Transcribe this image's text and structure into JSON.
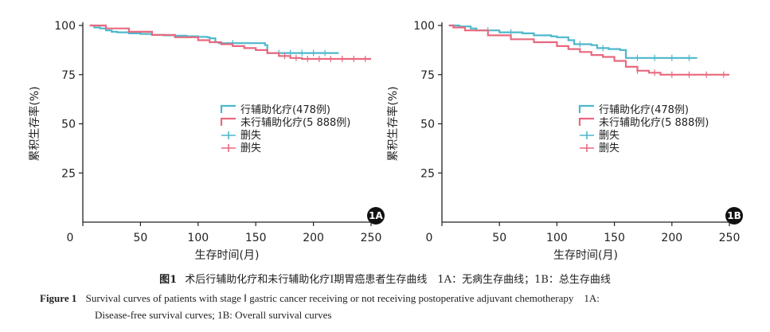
{
  "colors": {
    "adjuvant": "#4db8cc",
    "no_adjuvant": "#e8697f",
    "axis": "#222222"
  },
  "chart_data": [
    {
      "panel": "1A",
      "type": "line",
      "subtype": "kaplan-meier",
      "xlabel": "生存时间(月)",
      "ylabel": "累积生存率(%)",
      "xlim": [
        0,
        250
      ],
      "ylim": [
        0,
        100
      ],
      "xticks": [
        0,
        50,
        100,
        150,
        200,
        250
      ],
      "yticks": [
        25,
        50,
        75,
        100
      ],
      "legend": [
        {
          "name": "行辅助化疗(478例)",
          "color_key": "adjuvant",
          "kind": "line"
        },
        {
          "name": "未行辅助化疗(5 888例)",
          "color_key": "no_adjuvant",
          "kind": "line"
        },
        {
          "name": "删失",
          "color_key": "adjuvant",
          "kind": "censor"
        },
        {
          "name": "删失",
          "color_key": "no_adjuvant",
          "kind": "censor"
        }
      ],
      "series": [
        {
          "name": "行辅助化疗(478例)",
          "color_key": "adjuvant",
          "x": [
            6,
            10,
            15,
            20,
            25,
            30,
            40,
            50,
            60,
            70,
            80,
            90,
            100,
            108,
            110,
            115,
            118,
            125,
            140,
            155,
            158,
            160,
            165,
            200,
            222
          ],
          "y": [
            100,
            99,
            98.5,
            97.5,
            96.8,
            96.5,
            96,
            95.7,
            95.2,
            95,
            94.8,
            94.5,
            94.2,
            94,
            93.5,
            91.5,
            91,
            91,
            91,
            91,
            90,
            86,
            86,
            86,
            86
          ],
          "censor_x": [
            130,
            170,
            180,
            190,
            200,
            210
          ]
        },
        {
          "name": "未行辅助化疗(5 888例)",
          "color_key": "no_adjuvant",
          "x": [
            6,
            20,
            40,
            60,
            80,
            100,
            110,
            120,
            130,
            140,
            150,
            160,
            170,
            180,
            190,
            200,
            225,
            250
          ],
          "y": [
            100,
            98.5,
            96.8,
            95.2,
            94,
            92.5,
            91.5,
            90.5,
            89.5,
            88.5,
            87.5,
            86,
            84.5,
            83.5,
            83,
            83,
            83,
            83
          ],
          "censor_x": [
            175,
            185,
            195,
            205,
            215,
            225,
            235,
            245
          ]
        }
      ]
    },
    {
      "panel": "1B",
      "type": "line",
      "subtype": "kaplan-meier",
      "xlabel": "生存时间(月)",
      "ylabel": "累积生存率(%)",
      "xlim": [
        0,
        250
      ],
      "ylim": [
        0,
        100
      ],
      "xticks": [
        0,
        50,
        100,
        150,
        200,
        250
      ],
      "yticks": [
        25,
        50,
        75,
        100
      ],
      "legend": [
        {
          "name": "行辅助化疗(478例)",
          "color_key": "adjuvant",
          "kind": "line"
        },
        {
          "name": "未行辅助化疗(5 888例)",
          "color_key": "no_adjuvant",
          "kind": "line"
        },
        {
          "name": "删失",
          "color_key": "adjuvant",
          "kind": "censor"
        },
        {
          "name": "删失",
          "color_key": "no_adjuvant",
          "kind": "censor"
        }
      ],
      "series": [
        {
          "name": "行辅助化疗(478例)",
          "color_key": "adjuvant",
          "x": [
            6,
            15,
            25,
            30,
            50,
            70,
            80,
            95,
            100,
            110,
            115,
            130,
            135,
            145,
            155,
            160,
            200,
            222
          ],
          "y": [
            100,
            99.5,
            98.5,
            97.5,
            96.5,
            96,
            95,
            94.5,
            94,
            92.5,
            90.5,
            90,
            88.5,
            88,
            87.5,
            83.5,
            83.5,
            83.5
          ],
          "censor_x": [
            40,
            60,
            120,
            140,
            170,
            185,
            200,
            215
          ]
        },
        {
          "name": "未行辅助化疗(5 888例)",
          "color_key": "no_adjuvant",
          "x": [
            6,
            10,
            20,
            40,
            60,
            80,
            100,
            110,
            120,
            130,
            140,
            150,
            160,
            170,
            180,
            190,
            250
          ],
          "y": [
            100,
            99,
            97.5,
            95,
            93,
            91.5,
            89.5,
            88,
            86.5,
            85,
            84,
            82,
            79,
            77,
            76,
            75,
            75
          ],
          "censor_x": [
            170,
            185,
            200,
            215,
            230,
            245
          ]
        }
      ]
    }
  ],
  "caption": {
    "cn_label": "图1",
    "cn_text": "术后行辅助化疗和未行辅助化疗Ⅰ期胃癌患者生存曲线　1A：无病生存曲线；1B：总生存曲线",
    "en_label": "Figure 1",
    "en_line1": "Survival curves of patients with stage Ⅰ gastric cancer receiving or not receiving postoperative adjuvant chemotherapy　1A:",
    "en_line2": "Disease-free survival curves; 1B: Overall survival curves"
  }
}
